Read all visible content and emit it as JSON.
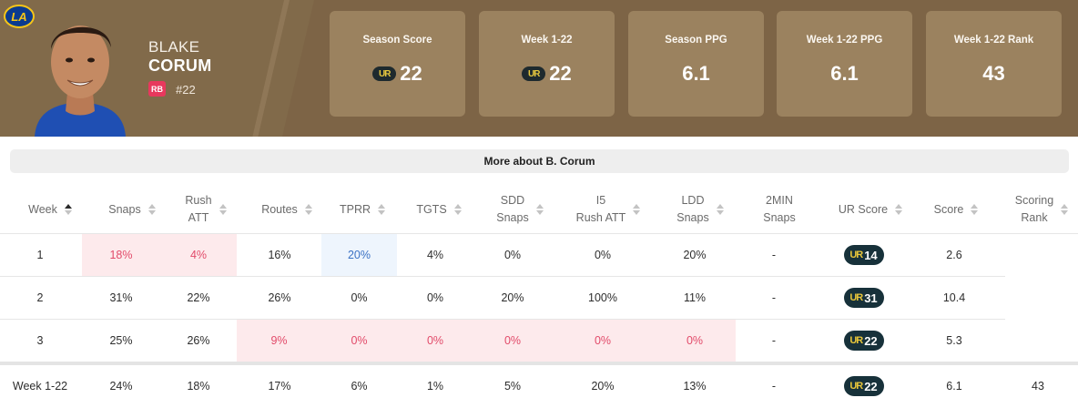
{
  "player": {
    "first_name": "BLAKE",
    "last_name": "CORUM",
    "position": "RB",
    "number": "#22",
    "team_logo": "LA"
  },
  "summary": [
    {
      "label": "Season Score",
      "value": "22",
      "ur_logo": true
    },
    {
      "label": "Week 1-22",
      "value": "22",
      "ur_logo": true
    },
    {
      "label": "Season PPG",
      "value": "6.1",
      "ur_logo": false
    },
    {
      "label": "Week 1-22 PPG",
      "value": "6.1",
      "ur_logo": false
    },
    {
      "label": "Week 1-22 Rank",
      "value": "43",
      "ur_logo": false
    }
  ],
  "more_button": "More about B. Corum",
  "table": {
    "headers": {
      "week": "Week",
      "snaps": "Snaps",
      "rush_att_1": "Rush",
      "rush_att_2": "ATT",
      "routes": "Routes",
      "tprr": "TPRR",
      "tgts": "TGTS",
      "sdd_1": "SDD",
      "sdd_2": "Snaps",
      "i5_1": "I5",
      "i5_2": "Rush ATT",
      "ldd_1": "LDD",
      "ldd_2": "Snaps",
      "twomin_1": "2MIN",
      "twomin_2": "Snaps",
      "ur_score": "UR Score",
      "score": "Score",
      "rank_1": "Scoring",
      "rank_2": "Rank"
    },
    "rows": [
      {
        "week": "1",
        "snaps": "18%",
        "rush_att": "4%",
        "routes": "16%",
        "tprr": "20%",
        "tgts": "4%",
        "sdd": "0%",
        "i5": "0%",
        "ldd": "20%",
        "twomin": "-",
        "ur": "14",
        "score": "2.6",
        "rank": ""
      },
      {
        "week": "2",
        "snaps": "31%",
        "rush_att": "22%",
        "routes": "26%",
        "tprr": "0%",
        "tgts": "0%",
        "sdd": "20%",
        "i5": "100%",
        "ldd": "11%",
        "twomin": "-",
        "ur": "31",
        "score": "10.4",
        "rank": ""
      },
      {
        "week": "3",
        "snaps": "25%",
        "rush_att": "26%",
        "routes": "9%",
        "tprr": "0%",
        "tgts": "0%",
        "sdd": "0%",
        "i5": "0%",
        "ldd": "0%",
        "twomin": "-",
        "ur": "22",
        "score": "5.3",
        "rank": ""
      }
    ],
    "total": {
      "week": "Week 1-22",
      "snaps": "24%",
      "rush_att": "18%",
      "routes": "17%",
      "tprr": "6%",
      "tgts": "1%",
      "sdd": "5%",
      "i5": "20%",
      "ldd": "13%",
      "twomin": "-",
      "ur": "22",
      "score": "6.1",
      "rank": "43"
    }
  },
  "colors": {
    "header_bg": "#7d6446",
    "card_bg": "#9b825f",
    "highlight_red": "#fdeaec",
    "highlight_blue": "#eef5fd",
    "ur_pill": "#17313a",
    "ur_mark": "#e8c63a"
  }
}
